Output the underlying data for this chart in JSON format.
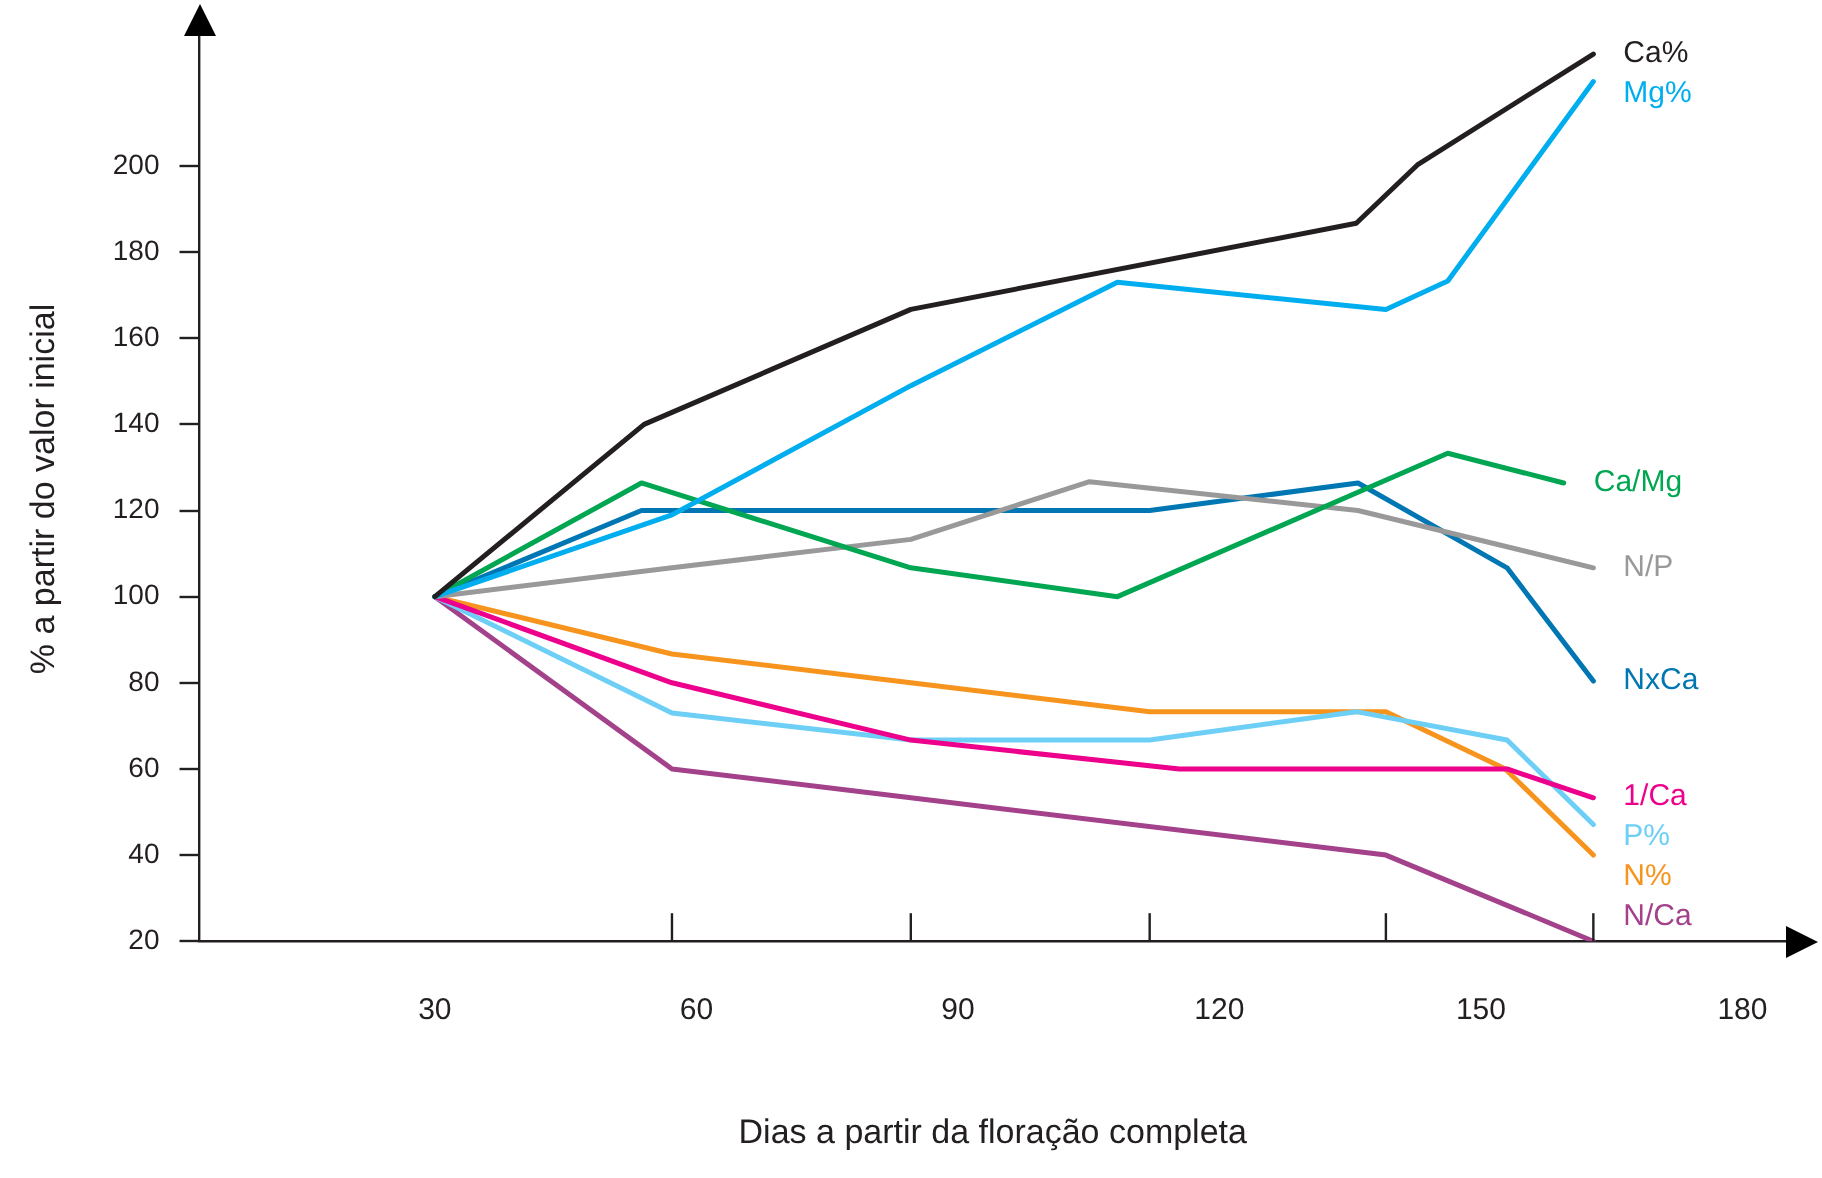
{
  "chart_data": {
    "type": "line",
    "xlabel": "Dias a partir da floração completa",
    "ylabel": "% a partir do valor inicial",
    "xlim": [
      3,
      185
    ],
    "ylim": [
      20,
      230
    ],
    "xticks": [
      30,
      60,
      90,
      120,
      150,
      180,
      {
        "value": 57.2,
        "label": null
      },
      {
        "value": 84.6,
        "label": null
      },
      {
        "value": 112,
        "label": null
      },
      {
        "value": 139.1,
        "label": null
      },
      {
        "value": 162.9,
        "label": null
      }
    ],
    "yticks": [
      20,
      40,
      60,
      80,
      100,
      120,
      140,
      160,
      180,
      200
    ],
    "grid": false,
    "legend": false,
    "marker": "none",
    "line_style": "solid",
    "series": [
      {
        "name": "Ca%",
        "color": "#231f20",
        "x": [
          30,
          54,
          84.6,
          135.7,
          142.8,
          162.9
        ],
        "values": [
          100,
          140,
          166.7,
          186.7,
          200.4,
          226
        ]
      },
      {
        "name": "Mg%",
        "color": "#00aeef",
        "x": [
          30,
          57.2,
          84.6,
          108.3,
          139.1,
          146.2,
          162.9
        ],
        "values": [
          100,
          119,
          149,
          173,
          166.7,
          173.3,
          219.6
        ]
      },
      {
        "name": "Ca/Mg",
        "color": "#00a651",
        "x": [
          30,
          53.7,
          84.6,
          108.3,
          146.2,
          159.5
        ],
        "values": [
          100,
          126.4,
          106.7,
          100,
          133.3,
          126.4
        ]
      },
      {
        "name": "N/P",
        "color": "#999999",
        "x": [
          30,
          57.2,
          84.6,
          105.1,
          135.9,
          162.9
        ],
        "values": [
          100,
          106.7,
          113.3,
          126.7,
          120,
          106.7
        ]
      },
      {
        "name": "NxCa",
        "color": "#0077b3",
        "x": [
          30,
          53.7,
          112,
          135.9,
          153,
          162.9
        ],
        "values": [
          100,
          120,
          120,
          126.4,
          106.7,
          80.4
        ]
      },
      {
        "name": "1/Ca",
        "color": "#ec008c",
        "x": [
          30,
          57.2,
          84.6,
          115.4,
          153,
          162.9
        ],
        "values": [
          100,
          80,
          66.7,
          60,
          60,
          53.3
        ]
      },
      {
        "name": "P%",
        "color": "#6dcff6",
        "x": [
          30,
          57.2,
          84.6,
          112,
          135.7,
          153,
          162.9
        ],
        "values": [
          100,
          73,
          66.7,
          66.7,
          73.3,
          66.7,
          47.1
        ]
      },
      {
        "name": "N%",
        "color": "#f7941d",
        "x": [
          30,
          57.2,
          84.6,
          112,
          139.1,
          152.8,
          162.9
        ],
        "values": [
          100,
          86.7,
          80,
          73.3,
          73.3,
          60,
          40
        ]
      },
      {
        "name": "N/Ca",
        "color": "#a3418b",
        "x": [
          30,
          57.2,
          84.6,
          139.1,
          162.9
        ],
        "values": [
          100,
          60,
          53.3,
          40,
          20
        ]
      }
    ]
  }
}
